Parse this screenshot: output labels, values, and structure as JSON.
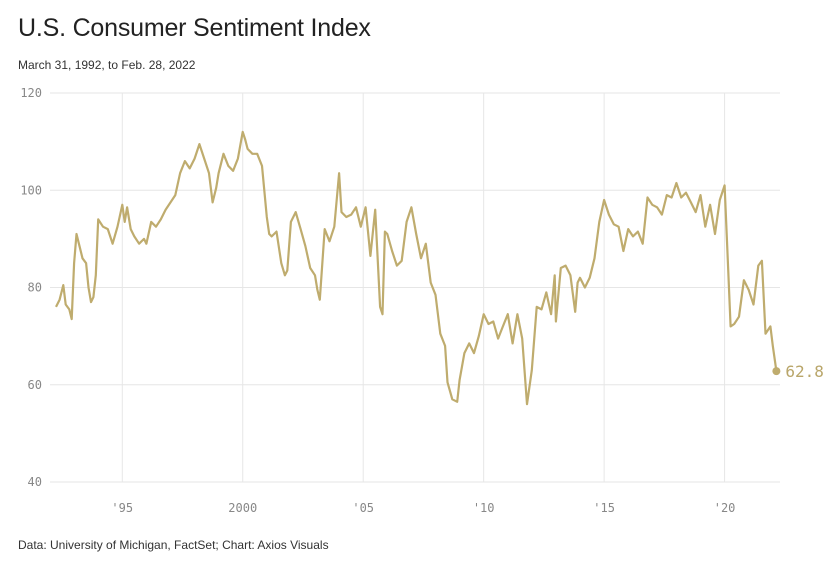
{
  "title": "U.S. Consumer Sentiment Index",
  "subtitle": "March 31, 1992, to Feb. 28, 2022",
  "source": "Data: University of Michigan, FactSet; Chart: Axios Visuals",
  "colors": {
    "line": "#bfac6e",
    "grid": "#e6e6e6",
    "tick": "#888888"
  },
  "chart_data": {
    "type": "line",
    "title": "U.S. Consumer Sentiment Index",
    "xlabel": "",
    "ylabel": "",
    "xlim": [
      1992.0,
      2022.3
    ],
    "ylim": [
      40,
      120
    ],
    "y_ticks": [
      {
        "value": 40,
        "label": "40"
      },
      {
        "value": 60,
        "label": "60"
      },
      {
        "value": 80,
        "label": "80"
      },
      {
        "value": 100,
        "label": "100"
      },
      {
        "value": 120,
        "label": "120"
      }
    ],
    "x_ticks": [
      {
        "value": 1995,
        "label": "'95"
      },
      {
        "value": 2000,
        "label": "2000"
      },
      {
        "value": 2005,
        "label": "'05"
      },
      {
        "value": 2010,
        "label": "'10"
      },
      {
        "value": 2015,
        "label": "'15"
      },
      {
        "value": 2020,
        "label": "'20"
      }
    ],
    "end_label": "62.8",
    "series": [
      {
        "name": "Consumer Sentiment",
        "x": [
          1992.25,
          1992.4,
          1992.55,
          1992.65,
          1992.8,
          1992.9,
          1993.0,
          1993.1,
          1993.2,
          1993.35,
          1993.5,
          1993.6,
          1993.7,
          1993.8,
          1993.9,
          1994.0,
          1994.2,
          1994.4,
          1994.6,
          1994.8,
          1995.0,
          1995.1,
          1995.2,
          1995.35,
          1995.5,
          1995.7,
          1995.9,
          1996.0,
          1996.2,
          1996.4,
          1996.6,
          1996.8,
          1997.0,
          1997.2,
          1997.4,
          1997.6,
          1997.8,
          1998.0,
          1998.2,
          1998.4,
          1998.6,
          1998.75,
          1998.9,
          1999.0,
          1999.2,
          1999.4,
          1999.6,
          1999.8,
          2000.0,
          2000.1,
          2000.2,
          2000.4,
          2000.6,
          2000.8,
          2001.0,
          2001.1,
          2001.2,
          2001.4,
          2001.6,
          2001.75,
          2001.85,
          2002.0,
          2002.2,
          2002.4,
          2002.6,
          2002.8,
          2003.0,
          2003.1,
          2003.2,
          2003.4,
          2003.6,
          2003.8,
          2004.0,
          2004.1,
          2004.3,
          2004.5,
          2004.7,
          2004.9,
          2005.1,
          2005.3,
          2005.5,
          2005.7,
          2005.8,
          2005.9,
          2006.0,
          2006.2,
          2006.4,
          2006.6,
          2006.8,
          2007.0,
          2007.2,
          2007.4,
          2007.6,
          2007.8,
          2008.0,
          2008.2,
          2008.4,
          2008.5,
          2008.7,
          2008.9,
          2009.0,
          2009.2,
          2009.4,
          2009.6,
          2009.8,
          2010.0,
          2010.2,
          2010.4,
          2010.6,
          2010.8,
          2011.0,
          2011.2,
          2011.4,
          2011.6,
          2011.8,
          2012.0,
          2012.2,
          2012.4,
          2012.6,
          2012.8,
          2012.95,
          2013.0,
          2013.2,
          2013.4,
          2013.6,
          2013.8,
          2013.9,
          2014.0,
          2014.2,
          2014.4,
          2014.6,
          2014.8,
          2015.0,
          2015.2,
          2015.4,
          2015.6,
          2015.8,
          2016.0,
          2016.2,
          2016.4,
          2016.6,
          2016.8,
          2017.0,
          2017.2,
          2017.4,
          2017.6,
          2017.8,
          2018.0,
          2018.2,
          2018.4,
          2018.6,
          2018.8,
          2019.0,
          2019.2,
          2019.4,
          2019.6,
          2019.8,
          2020.0,
          2020.1,
          2020.25,
          2020.4,
          2020.6,
          2020.8,
          2021.0,
          2021.2,
          2021.4,
          2021.55,
          2021.7,
          2021.9,
          2022.0,
          2022.15
        ],
        "values": [
          76.0,
          77.5,
          80.5,
          76.5,
          75.5,
          73.5,
          85.0,
          91.0,
          89.0,
          86.0,
          85.0,
          80.0,
          77.0,
          78.0,
          82.5,
          94.0,
          92.5,
          92.0,
          89.0,
          92.5,
          97.0,
          93.5,
          96.5,
          92.0,
          90.5,
          89.0,
          90.0,
          89.0,
          93.5,
          92.5,
          94.0,
          96.0,
          97.5,
          99.0,
          103.5,
          106.0,
          104.5,
          106.5,
          109.5,
          106.5,
          103.5,
          97.5,
          100.5,
          103.5,
          107.5,
          105.0,
          104.0,
          106.5,
          112.0,
          110.5,
          108.5,
          107.5,
          107.5,
          105.0,
          94.5,
          91.0,
          90.5,
          91.5,
          85.0,
          82.5,
          83.5,
          93.5,
          95.5,
          92.0,
          88.5,
          84.0,
          82.5,
          79.5,
          77.5,
          92.0,
          89.5,
          92.5,
          103.5,
          95.5,
          94.5,
          95.0,
          96.5,
          92.5,
          96.5,
          86.5,
          96.0,
          76.0,
          74.5,
          91.5,
          91.0,
          87.5,
          84.5,
          85.5,
          93.5,
          96.5,
          91.0,
          86.0,
          89.0,
          81.0,
          78.5,
          70.5,
          68.0,
          60.5,
          57.0,
          56.5,
          61.0,
          66.5,
          68.5,
          66.5,
          70.0,
          74.5,
          72.5,
          73.0,
          69.5,
          72.0,
          74.5,
          68.5,
          74.5,
          69.5,
          56.0,
          63.0,
          76.0,
          75.5,
          79.0,
          74.5,
          82.5,
          73.0,
          84.0,
          84.5,
          82.5,
          75.0,
          81.0,
          82.0,
          80.0,
          82.0,
          86.0,
          93.5,
          98.0,
          95.0,
          93.0,
          92.5,
          87.5,
          92.0,
          90.5,
          91.5,
          89.0,
          98.5,
          97.0,
          96.5,
          95.0,
          99.0,
          98.5,
          101.5,
          98.5,
          99.5,
          97.5,
          95.5,
          99.0,
          92.5,
          97.0,
          91.0,
          98.0,
          101.0,
          89.5,
          72.0,
          72.5,
          74.0,
          81.5,
          79.5,
          76.5,
          84.5,
          85.5,
          70.5,
          72.0,
          68.0,
          62.8
        ]
      }
    ]
  }
}
